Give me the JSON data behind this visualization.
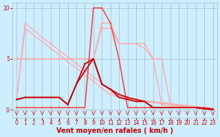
{
  "title": "",
  "xlabel": "Vent moyen/en rafales ( km/h )",
  "bg_color": "#cceeff",
  "grid_color": "#aabbcc",
  "x_ticks": [
    0,
    1,
    2,
    3,
    4,
    5,
    6,
    7,
    8,
    9,
    10,
    11,
    12,
    13,
    14,
    15,
    16,
    17,
    18,
    19,
    20,
    21,
    22,
    23
  ],
  "ylim": [
    -0.8,
    10.5
  ],
  "xlim": [
    -0.5,
    23.5
  ],
  "yticks": [
    0,
    5,
    10
  ],
  "series": [
    {
      "x": [
        0,
        1,
        2,
        3,
        4,
        5,
        6,
        7,
        8,
        9,
        10,
        11,
        12,
        13,
        14,
        15,
        16,
        17,
        18,
        19,
        20,
        21,
        22,
        23
      ],
      "y": [
        1.0,
        8.5,
        7.8,
        7.1,
        6.5,
        5.8,
        5.2,
        4.5,
        3.9,
        3.2,
        2.6,
        1.9,
        1.3,
        1.2,
        1.0,
        0.9,
        0.8,
        0.7,
        0.6,
        0.5,
        0.4,
        0.3,
        0.2,
        0.1
      ],
      "color": "#ffaaaa",
      "lw": 1.0,
      "marker": "s",
      "ms": 2.0
    },
    {
      "x": [
        0,
        1,
        2,
        3,
        4,
        5,
        6,
        7,
        8,
        9,
        10,
        11,
        12,
        13,
        14,
        15,
        16,
        17,
        18,
        19,
        20,
        21,
        22,
        23
      ],
      "y": [
        1.0,
        8.0,
        7.3,
        6.7,
        6.0,
        5.4,
        4.7,
        4.1,
        3.4,
        2.8,
        2.1,
        1.5,
        1.2,
        1.1,
        0.9,
        0.8,
        0.7,
        0.6,
        0.5,
        0.4,
        0.3,
        0.2,
        0.1,
        0.0
      ],
      "color": "#ffaaaa",
      "lw": 1.0,
      "marker": "s",
      "ms": 2.0
    },
    {
      "x": [
        0,
        1,
        2,
        3,
        4,
        5,
        6,
        7,
        8,
        9,
        10,
        11,
        12,
        13,
        14,
        15,
        16,
        17,
        18,
        19,
        20,
        21,
        22,
        23
      ],
      "y": [
        5.0,
        5.0,
        5.0,
        5.0,
        5.0,
        5.0,
        5.0,
        5.0,
        5.0,
        5.0,
        8.5,
        8.5,
        6.5,
        6.5,
        6.5,
        6.5,
        5.0,
        5.0,
        0.5,
        0.3,
        0.2,
        0.2,
        0.2,
        0.1
      ],
      "color": "#ffaaaa",
      "lw": 1.0,
      "marker": "s",
      "ms": 2.0
    },
    {
      "x": [
        0,
        1,
        2,
        3,
        4,
        5,
        6,
        7,
        8,
        9,
        10,
        11,
        12,
        13,
        14,
        15,
        16,
        17,
        18,
        19,
        20,
        21,
        22,
        23
      ],
      "y": [
        5.0,
        5.0,
        5.0,
        5.0,
        5.0,
        5.0,
        5.0,
        5.0,
        5.0,
        5.0,
        8.0,
        8.0,
        6.5,
        6.5,
        6.5,
        6.0,
        5.0,
        0.5,
        0.3,
        0.2,
        0.2,
        0.2,
        0.1,
        0.0
      ],
      "color": "#ffaaaa",
      "lw": 1.0,
      "marker": "s",
      "ms": 2.0
    },
    {
      "x": [
        0,
        1,
        2,
        3,
        4,
        5,
        6,
        7,
        8,
        9,
        10,
        11,
        12,
        13,
        14,
        15,
        16,
        17,
        18,
        19,
        20,
        21,
        22,
        23
      ],
      "y": [
        0.2,
        0.2,
        0.2,
        0.2,
        0.2,
        0.2,
        0.2,
        0.2,
        0.2,
        10.0,
        10.0,
        8.5,
        5.0,
        0.2,
        0.2,
        0.2,
        0.2,
        0.2,
        0.2,
        0.2,
        0.2,
        0.2,
        0.2,
        0.1
      ],
      "color": "#ff4444",
      "lw": 1.2,
      "marker": "s",
      "ms": 2.0
    },
    {
      "x": [
        0,
        1,
        2,
        3,
        4,
        5,
        6,
        7,
        8,
        9,
        10,
        11,
        12,
        13,
        14,
        15,
        16,
        17,
        18,
        19,
        20,
        21,
        22,
        23
      ],
      "y": [
        1.0,
        1.2,
        1.2,
        1.2,
        1.2,
        1.2,
        0.5,
        2.5,
        3.8,
        5.0,
        2.5,
        2.0,
        1.5,
        1.2,
        1.0,
        0.8,
        0.2,
        0.2,
        0.2,
        0.2,
        0.2,
        0.2,
        0.1,
        0.0
      ],
      "color": "#cc0000",
      "lw": 1.3,
      "marker": "s",
      "ms": 2.0
    },
    {
      "x": [
        0,
        1,
        2,
        3,
        4,
        5,
        6,
        7,
        8,
        9,
        10,
        11,
        12,
        13,
        14,
        15,
        16,
        17,
        18,
        19,
        20,
        21,
        22,
        23
      ],
      "y": [
        1.0,
        1.2,
        1.2,
        1.2,
        1.2,
        1.2,
        0.5,
        2.5,
        4.5,
        5.0,
        2.5,
        2.0,
        1.2,
        1.0,
        0.8,
        0.8,
        0.2,
        0.2,
        0.2,
        0.2,
        0.2,
        0.2,
        0.1,
        0.0
      ],
      "color": "#cc0000",
      "lw": 1.3,
      "marker": "s",
      "ms": 2.0
    }
  ],
  "xlabel_fontsize": 7,
  "tick_fontsize": 5.5,
  "axis_label_color": "#cc0000",
  "tick_label_color": "#cc0000",
  "spine_color": "#aabbcc"
}
